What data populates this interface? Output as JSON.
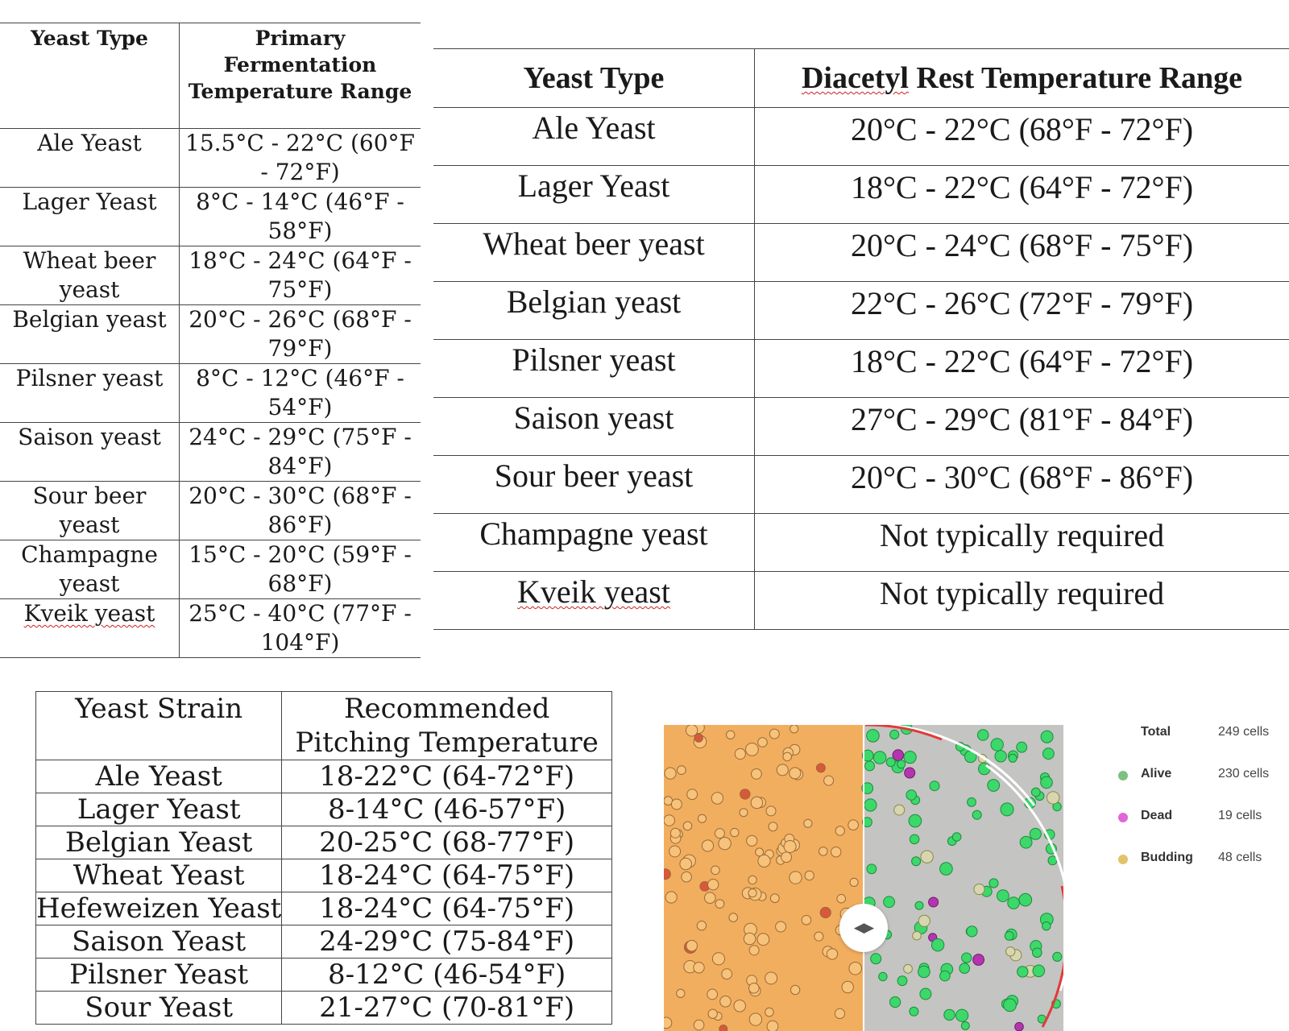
{
  "table1": {
    "headers": [
      "Yeast Type",
      "Primary Fermentation Temperature Range"
    ],
    "rows": [
      [
        "Ale Yeast",
        "15.5°C - 22°C (60°F - 72°F)"
      ],
      [
        "Lager Yeast",
        "8°C - 14°C (46°F - 58°F)"
      ],
      [
        "Wheat beer yeast",
        "18°C - 24°C (64°F - 75°F)"
      ],
      [
        "Belgian yeast",
        "20°C - 26°C (68°F - 79°F)"
      ],
      [
        "Pilsner yeast",
        "8°C - 12°C (46°F - 54°F)"
      ],
      [
        "Saison yeast",
        "24°C - 29°C (75°F - 84°F)"
      ],
      [
        "Sour beer yeast",
        "20°C - 30°C (68°F - 86°F)"
      ],
      [
        "Champagne yeast",
        "15°C - 20°C (59°F - 68°F)"
      ],
      [
        "Kveik yeast",
        "25°C - 40°C (77°F - 104°F)"
      ]
    ]
  },
  "table2": {
    "headers": [
      "Yeast Type",
      "Diacetyl Rest Temperature Range"
    ],
    "rows": [
      [
        "Ale Yeast",
        "20°C - 22°C (68°F - 72°F)"
      ],
      [
        "Lager Yeast",
        "18°C - 22°C (64°F - 72°F)"
      ],
      [
        "Wheat beer yeast",
        "20°C - 24°C (68°F - 75°F)"
      ],
      [
        "Belgian yeast",
        "22°C - 26°C (72°F - 79°F)"
      ],
      [
        "Pilsner yeast",
        "18°C - 22°C (64°F - 72°F)"
      ],
      [
        "Saison yeast",
        "27°C - 29°C (81°F - 84°F)"
      ],
      [
        "Sour beer yeast",
        "20°C - 30°C (68°F - 86°F)"
      ],
      [
        "Champagne yeast",
        "Not typically required"
      ],
      [
        "Kveik yeast",
        "Not typically required"
      ]
    ]
  },
  "table3": {
    "headers": [
      "Yeast Strain",
      "Recommended Pitching Temperature"
    ],
    "rows": [
      [
        "Ale Yeast",
        "18-22°C (64-72°F)"
      ],
      [
        "Lager Yeast",
        "8-14°C (46-57°F)"
      ],
      [
        "Belgian Yeast",
        "20-25°C (68-77°F)"
      ],
      [
        "Wheat Yeast",
        "18-24°C (64-75°F)"
      ],
      [
        "Hefeweizen Yeast",
        "18-24°C (64-75°F)"
      ],
      [
        "Saison Yeast",
        "24-29°C (75-84°F)"
      ],
      [
        "Pilsner Yeast",
        "8-12°C (46-54°F)"
      ],
      [
        "Sour Yeast",
        "21-27°C (70-81°F)"
      ]
    ]
  },
  "cell_counter": {
    "legend": [
      {
        "label": "Total",
        "value": "249 cells",
        "color": ""
      },
      {
        "label": "Alive",
        "value": "230 cells",
        "color": "#7cc17f"
      },
      {
        "label": "Dead",
        "value": "19 cells",
        "color": "#e066d8"
      },
      {
        "label": "Budding",
        "value": "48 cells",
        "color": "#e2c36b"
      }
    ],
    "colors": {
      "raw_background": "#f2ae5f",
      "stained_background": "#c4c4c2",
      "alive_cell": "#3dd86a",
      "dead_cell": "#b535b0",
      "slider_arc": "#e03b3b"
    },
    "icons": [
      "compare-slider-handle-icon"
    ]
  }
}
